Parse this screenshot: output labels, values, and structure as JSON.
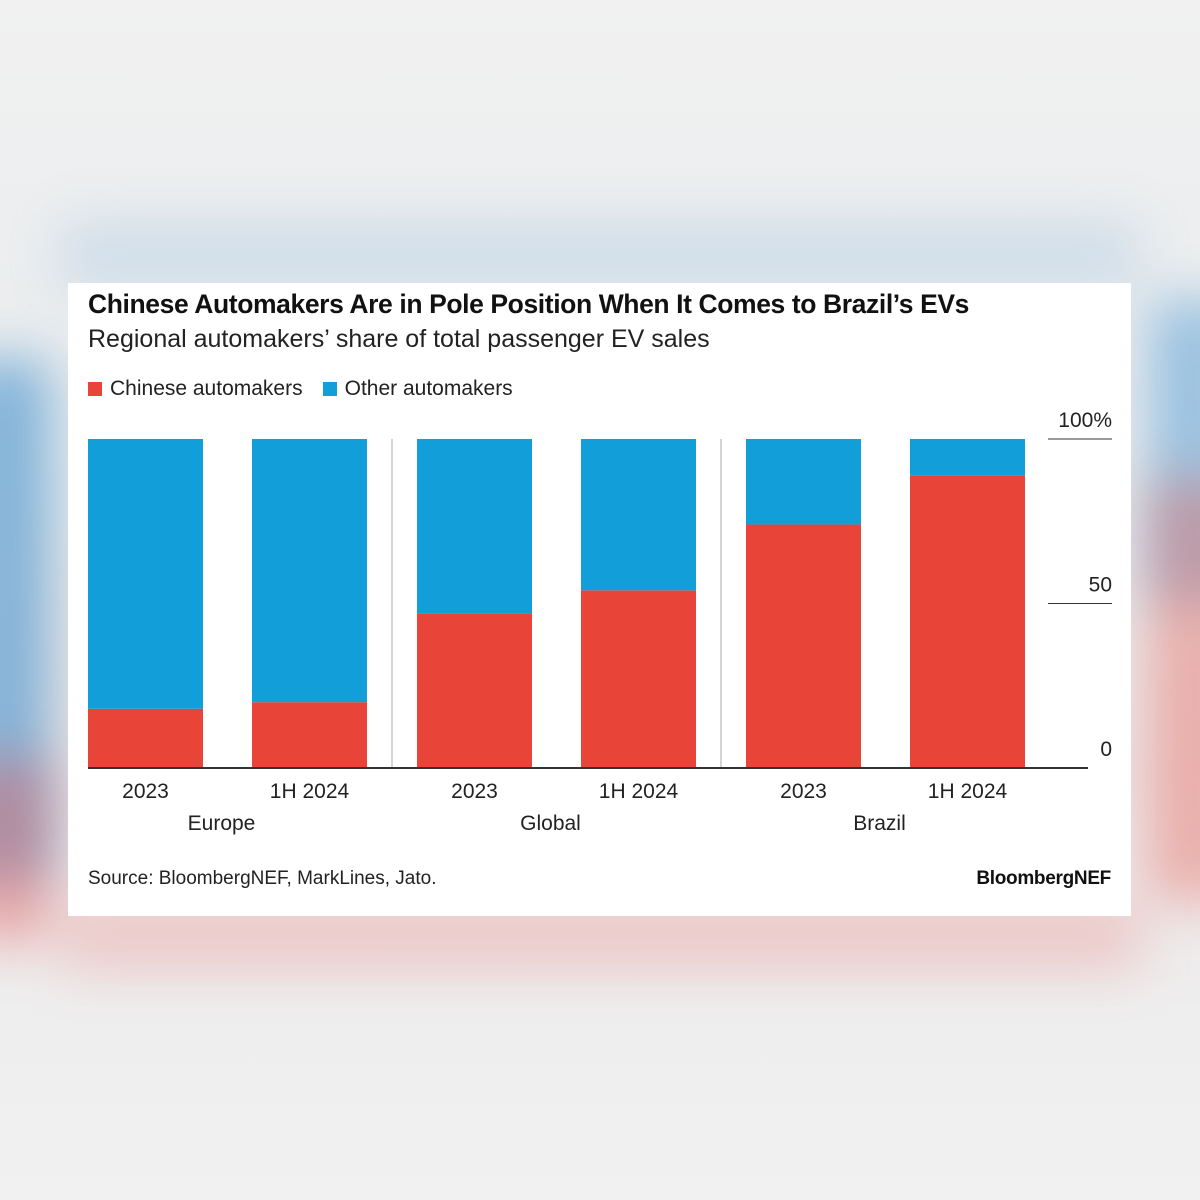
{
  "card": {
    "title": "Chinese Automakers Are in Pole Position When It Comes to Brazil’s EVs",
    "subtitle": "Regional automakers’ share of total passenger EV sales",
    "source": "Source: BloombergNEF, MarkLines, Jato.",
    "brand": "BloombergNEF"
  },
  "colors": {
    "chinese": "#e84538",
    "other": "#119ed9",
    "axis": "#333333",
    "divider": "#d4d4d4"
  },
  "chart_data": {
    "type": "bar",
    "stacked": true,
    "ylim": [
      0,
      100
    ],
    "y_ticks": [
      "0",
      "50",
      "100%"
    ],
    "y_tick_values": [
      0,
      50,
      100
    ],
    "y_axis_side": "right",
    "legend_position": "top-left",
    "groups": [
      {
        "label": "Europe",
        "categories": [
          "2023",
          "1H 2024"
        ]
      },
      {
        "label": "Global",
        "categories": [
          "2023",
          "1H 2024"
        ]
      },
      {
        "label": "Brazil",
        "categories": [
          "2023",
          "1H 2024"
        ]
      }
    ],
    "series": [
      {
        "name": "Chinese automakers",
        "values": [
          18,
          20,
          47,
          54,
          74,
          89
        ]
      },
      {
        "name": "Other automakers",
        "values": [
          82,
          80,
          53,
          46,
          26,
          11
        ]
      }
    ]
  }
}
